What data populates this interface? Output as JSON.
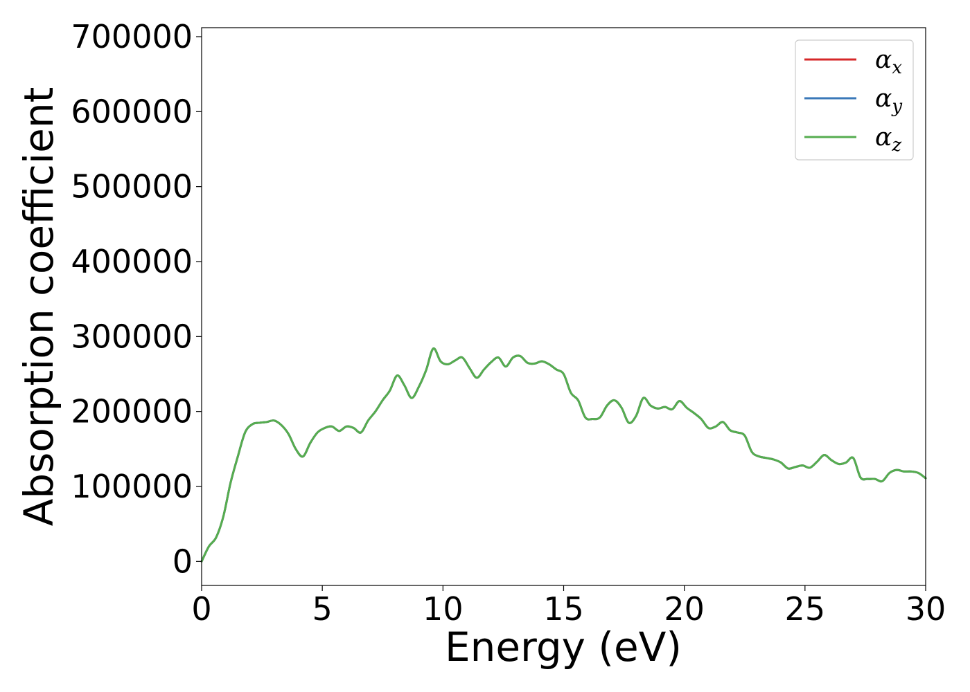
{
  "chart_data": {
    "type": "line",
    "xlabel": "Energy (eV)",
    "ylabel": "Absorption coefficient",
    "xlim": [
      0,
      30
    ],
    "ylim": [
      -32000,
      712000
    ],
    "xticks": [
      0,
      5,
      10,
      15,
      20,
      25,
      30
    ],
    "yticks": [
      0,
      100000,
      200000,
      300000,
      400000,
      500000,
      600000,
      700000
    ],
    "grid": false,
    "legend_position": "top-right",
    "x": [
      0,
      0.3,
      0.6,
      0.9,
      1.2,
      1.5,
      1.8,
      2.1,
      2.4,
      2.7,
      3.0,
      3.3,
      3.6,
      3.9,
      4.2,
      4.5,
      4.8,
      5.1,
      5.4,
      5.7,
      6.0,
      6.3,
      6.6,
      6.9,
      7.2,
      7.5,
      7.8,
      8.1,
      8.4,
      8.7,
      9.0,
      9.3,
      9.6,
      9.9,
      10.2,
      10.5,
      10.8,
      11.1,
      11.4,
      11.7,
      12.0,
      12.3,
      12.6,
      12.9,
      13.2,
      13.5,
      13.8,
      14.1,
      14.4,
      14.7,
      15.0,
      15.3,
      15.6,
      15.9,
      16.2,
      16.5,
      16.8,
      17.1,
      17.4,
      17.7,
      18.0,
      18.3,
      18.6,
      18.9,
      19.2,
      19.5,
      19.8,
      20.1,
      20.4,
      20.7,
      21.0,
      21.3,
      21.6,
      21.9,
      22.2,
      22.5,
      22.8,
      23.1,
      23.4,
      23.7,
      24.0,
      24.3,
      24.6,
      24.9,
      25.2,
      25.5,
      25.8,
      26.1,
      26.4,
      26.7,
      27.0,
      27.3,
      27.6,
      27.9,
      28.2,
      28.5,
      28.8,
      29.1,
      29.4,
      29.7,
      30.0
    ],
    "series": [
      {
        "name": "αx",
        "color": "#d62728",
        "values": [
          0,
          20000,
          32000,
          60000,
          105000,
          140000,
          172000,
          183000,
          185000,
          186000,
          188000,
          182000,
          170000,
          150000,
          140000,
          158000,
          172000,
          178000,
          180000,
          174000,
          180000,
          178000,
          172000,
          188000,
          200000,
          215000,
          228000,
          248000,
          235000,
          218000,
          233000,
          255000,
          284000,
          267000,
          263000,
          268000,
          272000,
          258000,
          245000,
          256000,
          266000,
          272000,
          260000,
          272000,
          274000,
          265000,
          264000,
          267000,
          263000,
          256000,
          250000,
          225000,
          215000,
          192000,
          190000,
          192000,
          208000,
          215000,
          205000,
          185000,
          194000,
          218000,
          208000,
          204000,
          206000,
          203000,
          214000,
          205000,
          198000,
          190000,
          178000,
          180000,
          186000,
          175000,
          172000,
          168000,
          146000,
          140000,
          138000,
          136000,
          132000,
          124000,
          126000,
          128000,
          125000,
          133000,
          142000,
          135000,
          130000,
          132000,
          138000,
          112000,
          110000,
          110000,
          107000,
          118000,
          122000,
          120000,
          120000,
          118000,
          111000
        ]
      },
      {
        "name": "αy",
        "color": "#3a78b8",
        "values": [
          0,
          20000,
          32000,
          60000,
          105000,
          140000,
          172000,
          183000,
          185000,
          186000,
          188000,
          182000,
          170000,
          150000,
          140000,
          158000,
          172000,
          178000,
          180000,
          174000,
          180000,
          178000,
          172000,
          188000,
          200000,
          215000,
          228000,
          248000,
          235000,
          218000,
          233000,
          255000,
          284000,
          267000,
          263000,
          268000,
          272000,
          258000,
          245000,
          256000,
          266000,
          272000,
          260000,
          272000,
          274000,
          265000,
          264000,
          267000,
          263000,
          256000,
          250000,
          225000,
          215000,
          192000,
          190000,
          192000,
          208000,
          215000,
          205000,
          185000,
          194000,
          218000,
          208000,
          204000,
          206000,
          203000,
          214000,
          205000,
          198000,
          190000,
          178000,
          180000,
          186000,
          175000,
          172000,
          168000,
          146000,
          140000,
          138000,
          136000,
          132000,
          124000,
          126000,
          128000,
          125000,
          133000,
          142000,
          135000,
          130000,
          132000,
          138000,
          112000,
          110000,
          110000,
          107000,
          118000,
          122000,
          120000,
          120000,
          118000,
          111000
        ]
      },
      {
        "name": "αz",
        "color": "#55ad4f",
        "values": [
          0,
          20000,
          32000,
          60000,
          105000,
          140000,
          172000,
          183000,
          185000,
          186000,
          188000,
          182000,
          170000,
          150000,
          140000,
          158000,
          172000,
          178000,
          180000,
          174000,
          180000,
          178000,
          172000,
          188000,
          200000,
          215000,
          228000,
          248000,
          235000,
          218000,
          233000,
          255000,
          284000,
          267000,
          263000,
          268000,
          272000,
          258000,
          245000,
          256000,
          266000,
          272000,
          260000,
          272000,
          274000,
          265000,
          264000,
          267000,
          263000,
          256000,
          250000,
          225000,
          215000,
          192000,
          190000,
          192000,
          208000,
          215000,
          205000,
          185000,
          194000,
          218000,
          208000,
          204000,
          206000,
          203000,
          214000,
          205000,
          198000,
          190000,
          178000,
          180000,
          186000,
          175000,
          172000,
          168000,
          146000,
          140000,
          138000,
          136000,
          132000,
          124000,
          126000,
          128000,
          125000,
          133000,
          142000,
          135000,
          130000,
          132000,
          138000,
          112000,
          110000,
          110000,
          107000,
          118000,
          122000,
          120000,
          120000,
          118000,
          111000
        ]
      }
    ],
    "legend": [
      {
        "base": "α",
        "sub": "x"
      },
      {
        "base": "α",
        "sub": "y"
      },
      {
        "base": "α",
        "sub": "z"
      }
    ]
  }
}
